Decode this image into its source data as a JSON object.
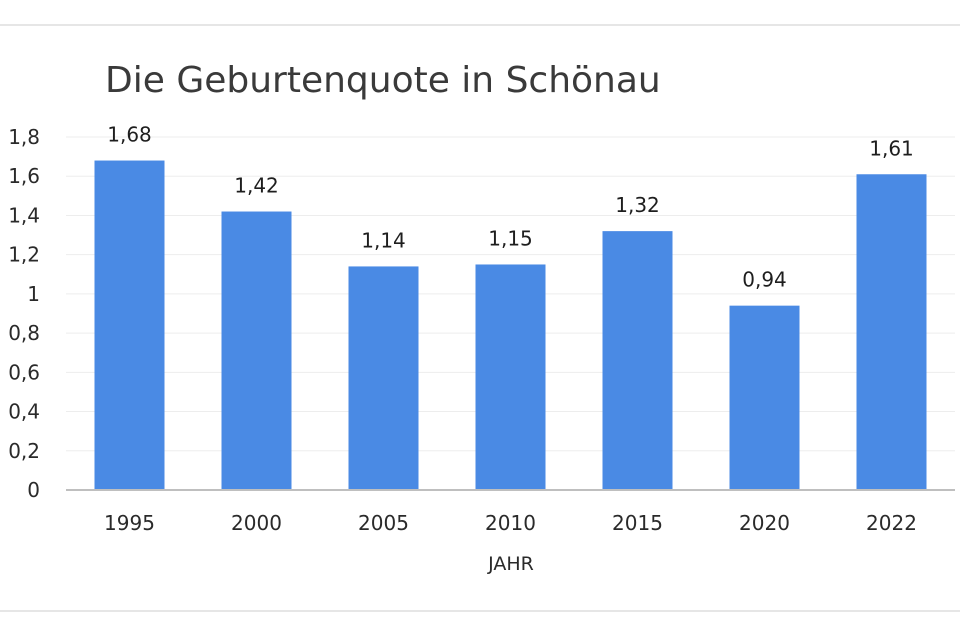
{
  "chart_data": {
    "type": "bar",
    "title": "Die Geburtenquote in Schönau",
    "xlabel": "JAHR",
    "ylabel": "",
    "categories": [
      "1995",
      "2000",
      "2005",
      "2010",
      "2015",
      "2020",
      "2022"
    ],
    "values": [
      1.68,
      1.42,
      1.14,
      1.15,
      1.32,
      0.94,
      1.61
    ],
    "data_labels": [
      "1,68",
      "1,42",
      "1,14",
      "1,15",
      "1,32",
      "0,94",
      "1,61"
    ],
    "ylim": [
      0,
      1.8
    ],
    "yticks": [
      {
        "value": 0,
        "label": "0"
      },
      {
        "value": 0.2,
        "label": "0,2"
      },
      {
        "value": 0.4,
        "label": "0,4"
      },
      {
        "value": 0.6,
        "label": "0,6"
      },
      {
        "value": 0.8,
        "label": "0,8"
      },
      {
        "value": 1.0,
        "label": "1"
      },
      {
        "value": 1.2,
        "label": "1,2"
      },
      {
        "value": 1.4,
        "label": "1,4"
      },
      {
        "value": 1.6,
        "label": "1,6"
      },
      {
        "value": 1.8,
        "label": "1,8"
      }
    ],
    "grid": true,
    "legend": "none",
    "colors": {
      "bar": "#4a8ae4",
      "axis": "#bfbfbf",
      "grid": "#ededed",
      "frame": "#e6e6e6"
    }
  }
}
